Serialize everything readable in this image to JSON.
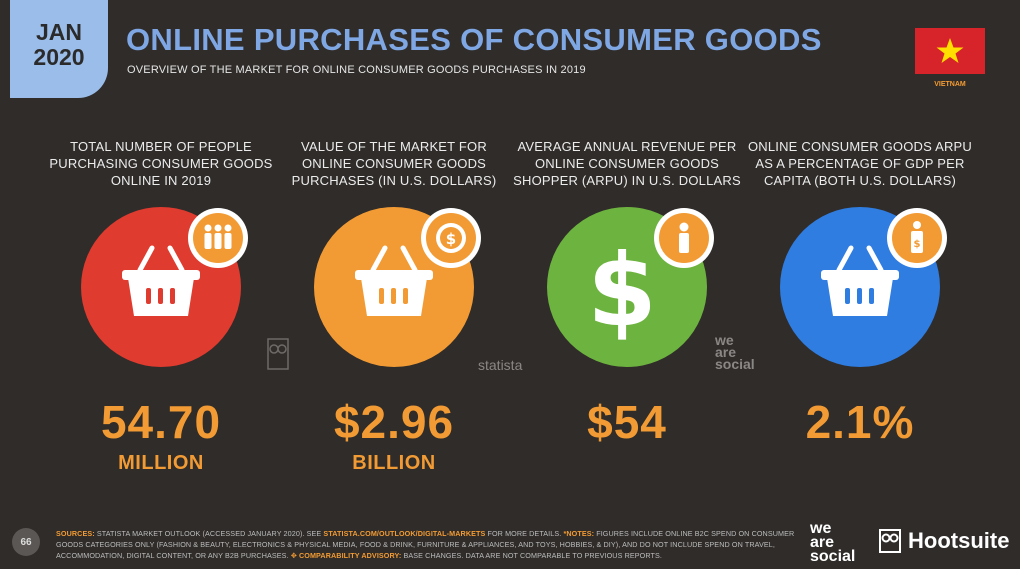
{
  "header": {
    "date_month": "JAN",
    "date_year": "2020",
    "title": "ONLINE PURCHASES OF CONSUMER GOODS",
    "subtitle": "OVERVIEW OF THE MARKET FOR ONLINE CONSUMER GOODS PURCHASES IN 2019",
    "country": "VIETNAM"
  },
  "stats": [
    {
      "label": "TOTAL NUMBER OF PEOPLE PURCHASING CONSUMER GOODS ONLINE IN 2019",
      "value": "54.70",
      "unit": "MILLION",
      "color": "#e03b2f",
      "icon": "people-icon"
    },
    {
      "label": "VALUE OF THE MARKET FOR ONLINE CONSUMER GOODS PURCHASES (IN U.S. DOLLARS)",
      "value": "$2.96",
      "unit": "BILLION",
      "color": "#f29b34",
      "icon": "dollar-seal-icon"
    },
    {
      "label": "AVERAGE ANNUAL REVENUE PER ONLINE CONSUMER GOODS SHOPPER (ARPU) IN U.S. DOLLARS",
      "value": "$54",
      "unit": "",
      "color": "#6db33f",
      "icon": "person-icon"
    },
    {
      "label": "ONLINE CONSUMER GOODS ARPU AS A PERCENTAGE OF GDP PER CAPITA (BOTH U.S. DOLLARS)",
      "value": "2.1%",
      "unit": "",
      "color": "#2f7de1",
      "icon": "person-dollar-icon"
    }
  ],
  "watermarks": {
    "statista": "statista",
    "wearesocial": [
      "we",
      "are",
      "social"
    ]
  },
  "footer": {
    "page": "66",
    "sources_label": "SOURCES:",
    "sources_text": " STATISTA MARKET OUTLOOK (ACCESSED JANUARY 2020). SEE ",
    "link": "STATISTA.COM/OUTLOOK/DIGITAL-MARKETS",
    "sources_after": " FOR MORE DETAILS. ",
    "notes_label": "*NOTES:",
    "notes_text": " FIGURES INCLUDE ONLINE B2C SPEND ON CONSUMER GOODS CATEGORIES ONLY (FASHION & BEAUTY, ELECTRONICS & PHYSICAL MEDIA, FOOD & DRINK, FURNITURE & APPLIANCES, AND TOYS, HOBBIES, & DIY), AND DO NOT INCLUDE SPEND ON TRAVEL, ACCOMMODATION, DIGITAL CONTENT, OR ANY B2B PURCHASES. ",
    "advisory_label": "✥ COMPARABILITY ADVISORY:",
    "advisory_text": " BASE CHANGES. DATA ARE NOT COMPARABLE TO PREVIOUS REPORTS."
  },
  "brands": {
    "wearesocial": [
      "we",
      "are",
      "social"
    ],
    "hootsuite": "Hootsuite"
  }
}
